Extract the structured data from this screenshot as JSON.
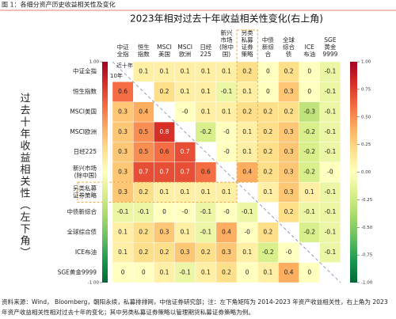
{
  "heading": "图 1：各细分资产历史收益相关性及变化",
  "chart_data": {
    "type": "heatmap",
    "title": "2023年相对过去十年收益相关性变化(右上角)",
    "y_label": "过去十年收益相关性（左下角）",
    "annotations": [
      "近十年",
      "10年"
    ],
    "col_labels": [
      [
        "中证",
        "全指"
      ],
      [
        "恒生",
        "指数"
      ],
      [
        "MSCI",
        "美国"
      ],
      [
        "MSCI",
        "欧洲"
      ],
      [
        "日经",
        "225"
      ],
      [
        "新兴",
        "市场",
        "(除中",
        "国)"
      ],
      [
        "另类",
        "私募",
        "证券",
        "策略"
      ],
      [
        "中债",
        "新综",
        "合"
      ],
      [
        "全球",
        "综合",
        "债"
      ],
      [
        "ICE",
        "布油"
      ],
      [
        "SGE",
        "黄金",
        "9999"
      ]
    ],
    "row_labels": [
      [
        "中证全指"
      ],
      [
        "恒生指数"
      ],
      [
        "MSCI美国"
      ],
      [
        "MSCI欧洲"
      ],
      [
        "日经225"
      ],
      [
        "新兴市场",
        "(除中国)"
      ],
      [
        "另类私募",
        "证券策略"
      ],
      [
        "中债新综合"
      ],
      [
        "全球综合债"
      ],
      [
        "ICE布油"
      ],
      [
        "SGE黄金9999"
      ]
    ],
    "values": [
      [
        null,
        0.1,
        0.1,
        0.1,
        0.1,
        0.1,
        0.2,
        0,
        0.2,
        0,
        -0.1
      ],
      [
        0.6,
        null,
        0.2,
        0.1,
        0.1,
        -0.1,
        0.1,
        0,
        0.3,
        0,
        -0.1
      ],
      [
        0.3,
        0.4,
        null,
        0,
        0.1,
        0.1,
        0.2,
        0.2,
        0.2,
        -0.3,
        -0.1
      ],
      [
        0.3,
        0.5,
        0.8,
        null,
        -0.2,
        0,
        0.1,
        0.2,
        0.3,
        -0.2,
        -0.1
      ],
      [
        0.3,
        0.5,
        0.6,
        0.7,
        null,
        0,
        0.1,
        0.2,
        0.3,
        -0.2,
        -0.1
      ],
      [
        0.3,
        0.7,
        0.7,
        0.7,
        0.6,
        null,
        0.4,
        0.2,
        0.3,
        -0.2,
        0
      ],
      [
        0.3,
        0.2,
        0.1,
        0.1,
        0.1,
        0.1,
        null,
        0.1,
        0.3,
        0.1,
        -0.1
      ],
      [
        -0.1,
        -0.1,
        0,
        0,
        -0.1,
        0,
        -0.1,
        null,
        0.2,
        -0.1,
        -0.1
      ],
      [
        0.1,
        0.2,
        0.3,
        0.1,
        -0.1,
        0.4,
        0,
        0.2,
        null,
        -0.2,
        -0.1
      ],
      [
        0.1,
        0.2,
        0.2,
        0.3,
        0.2,
        0.3,
        0.1,
        -0.2,
        0,
        null,
        -0.1
      ],
      [
        0,
        0,
        0.1,
        -0.1,
        0.1,
        0.2,
        0,
        0.1,
        0.4,
        0,
        null
      ]
    ],
    "value_labels": [
      [
        null,
        "0.1",
        "0.1",
        "0.1",
        "0.1",
        "0.1",
        "0.2",
        "0",
        "0.2",
        "0",
        "-0.1"
      ],
      [
        "0.6",
        null,
        "0.2",
        "0.1",
        "0.1",
        "-0.1",
        "0.1",
        "0",
        "0.3",
        "0",
        "-0.1"
      ],
      [
        "0.3",
        "0.4",
        null,
        "-0",
        "0.1",
        "0.1",
        "0.2",
        "0.2",
        "0.2",
        "-0.3",
        "-0.1"
      ],
      [
        "0.3",
        "0.5",
        "0.8",
        null,
        "-0.2",
        "-0",
        "0.1",
        "0.2",
        "0.3",
        "-0.2",
        "-0.1"
      ],
      [
        "0.3",
        "0.5",
        "0.6",
        "0.7",
        null,
        "-0",
        "0.1",
        "0.2",
        "0.3",
        "-0.2",
        "-0.1"
      ],
      [
        "0.3",
        "0.7",
        "0.7",
        "0.7",
        "0.6",
        null,
        "0.4",
        "0.2",
        "0.3",
        "-0.2",
        "-0"
      ],
      [
        "0.3",
        "0.2",
        "0.1",
        "0.1",
        "0.1",
        "0.1",
        null,
        "0.1",
        "0.3",
        "0.1",
        "-0.1"
      ],
      [
        "-0.1",
        "-0.1",
        "0",
        "-0",
        "-0.1",
        "-0",
        "-0.1",
        null,
        "0.2",
        "-0.1",
        "-0.1"
      ],
      [
        "0.1",
        "0.2",
        "0.3",
        "0.1",
        "-0.1",
        "0.4",
        "-0",
        "0.2",
        null,
        "-0.2",
        "-0.1"
      ],
      [
        "0.1",
        "0.2",
        "0.2",
        "0.3",
        "0.2",
        "0.3",
        "0.1",
        "-0.2",
        "-0",
        null,
        "-0.1"
      ],
      [
        "0",
        "0",
        "0.1",
        "-0.1",
        "0.1",
        "0.2",
        "0",
        "0.1",
        "0.4",
        "0",
        null
      ]
    ],
    "vlim": [
      -1,
      1
    ],
    "colormap": [
      "#006837",
      "#1a9850",
      "#66bd63",
      "#a6d96a",
      "#d9ef8b",
      "#ffffbf",
      "#fee08b",
      "#fdae61",
      "#f46d43",
      "#d73027",
      "#a50026"
    ],
    "colorbar_ticks": [
      {
        "value": -1,
        "label": "-1.00"
      },
      {
        "value": -0.75,
        "label": "-0.75"
      },
      {
        "value": -0.5,
        "label": "-0.50"
      },
      {
        "value": -0.25,
        "label": "-0.25"
      },
      {
        "value": 0,
        "label": "0.00"
      },
      {
        "value": 0.25,
        "label": "0.25"
      },
      {
        "value": 0.5,
        "label": "0.50"
      },
      {
        "value": 0.75,
        "label": "0.75"
      },
      {
        "value": 1,
        "label": "1.00"
      }
    ],
    "left_colorbar_ticks": [
      {
        "value": -1,
        "label": "-1.00"
      },
      {
        "value": 1,
        "label": "1.00"
      }
    ]
  },
  "footer": [
    "资料来源：Wind， Bloomberg，朝阳永续，私募排排网，中信证券研究部；注：左下角矩阵为 2014-2023 年资产收益相关性，右上角为 2023",
    "年资产收益相关性相对过去十年的变化；其中另类私募证券策略以管理期货私募证券策略为例。"
  ]
}
